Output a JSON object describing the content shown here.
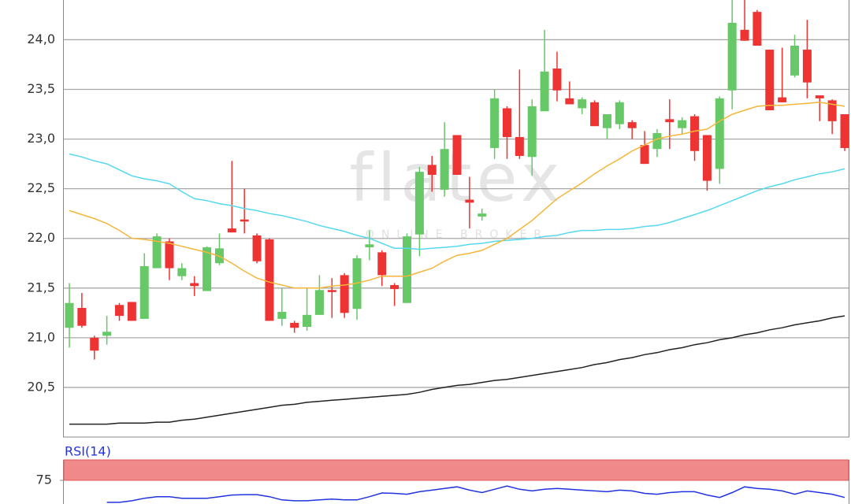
{
  "chart_data": [
    {
      "type": "candlestick",
      "watermark": "flatex",
      "watermark_sub": "ONLINE BROKER",
      "up_color": "#66c866",
      "down_color": "#ee3333",
      "ylim": [
        20.0,
        24.4
      ],
      "yticks": [
        {
          "value": 20.5,
          "label": "20,5"
        },
        {
          "value": 21.0,
          "label": "21,0"
        },
        {
          "value": 21.5,
          "label": "21,5"
        },
        {
          "value": 22.0,
          "label": "22,0"
        },
        {
          "value": 22.5,
          "label": "22,5"
        },
        {
          "value": 23.0,
          "label": "23,0"
        },
        {
          "value": 23.5,
          "label": "23,5"
        },
        {
          "value": 24.0,
          "label": "24,0"
        }
      ],
      "grid": true,
      "open": [
        21.1,
        21.3,
        21.0,
        21.02,
        21.33,
        21.36,
        21.19,
        21.7,
        21.97,
        21.62,
        21.55,
        21.47,
        21.75,
        22.1,
        22.19,
        22.03,
        21.99,
        21.19,
        21.15,
        21.11,
        21.23,
        21.48,
        21.63,
        21.29,
        21.91,
        21.86,
        21.53,
        21.35,
        22.04,
        22.74,
        22.49,
        23.04,
        22.39,
        22.22,
        22.91,
        23.31,
        23.02,
        22.82,
        23.28,
        23.71,
        23.41,
        23.31,
        23.37,
        23.11,
        23.15,
        23.17,
        22.94,
        22.9,
        23.2,
        23.11,
        23.23,
        23.04,
        22.7,
        23.49,
        24.1,
        24.28,
        23.9,
        23.42,
        23.64,
        23.9,
        23.44,
        23.39,
        23.25
      ],
      "high": [
        21.55,
        21.45,
        21.02,
        21.22,
        21.35,
        21.36,
        21.85,
        22.05,
        22.0,
        21.75,
        21.62,
        21.92,
        22.05,
        22.78,
        22.5,
        22.05,
        22.0,
        21.5,
        21.17,
        21.5,
        21.63,
        21.6,
        21.65,
        21.83,
        22.08,
        21.88,
        21.55,
        22.05,
        22.72,
        22.83,
        23.17,
        23.04,
        22.62,
        22.3,
        23.5,
        23.33,
        23.7,
        23.4,
        24.1,
        23.88,
        23.58,
        23.42,
        23.39,
        23.25,
        23.39,
        23.19,
        23.08,
        23.1,
        23.4,
        23.22,
        23.25,
        23.04,
        23.43,
        24.4,
        24.4,
        24.3,
        23.9,
        23.92,
        24.05,
        24.2,
        23.44,
        23.4,
        23.25
      ],
      "low": [
        20.9,
        21.1,
        20.78,
        20.93,
        21.17,
        21.17,
        21.19,
        21.7,
        21.58,
        21.58,
        21.42,
        21.47,
        21.73,
        22.06,
        22.05,
        21.75,
        21.17,
        21.12,
        21.05,
        21.07,
        21.23,
        21.2,
        21.2,
        21.18,
        21.78,
        21.52,
        21.32,
        21.35,
        21.82,
        22.47,
        22.42,
        22.64,
        22.1,
        22.18,
        22.8,
        22.8,
        22.8,
        22.63,
        23.28,
        23.38,
        23.35,
        23.25,
        23.13,
        23.0,
        23.1,
        23.0,
        22.75,
        22.82,
        22.9,
        23.05,
        22.78,
        22.48,
        22.55,
        23.3,
        23.99,
        23.94,
        23.29,
        23.37,
        23.62,
        23.41,
        23.18,
        23.05,
        22.88
      ],
      "close": [
        21.35,
        21.12,
        20.87,
        21.06,
        21.22,
        21.17,
        21.72,
        22.02,
        21.7,
        21.7,
        21.52,
        21.91,
        21.9,
        22.06,
        22.17,
        21.77,
        21.17,
        21.26,
        21.1,
        21.23,
        21.48,
        21.46,
        21.25,
        21.8,
        21.94,
        21.63,
        21.49,
        22.02,
        22.67,
        22.64,
        22.9,
        22.64,
        22.36,
        22.25,
        23.41,
        23.02,
        22.83,
        23.33,
        23.68,
        23.49,
        23.35,
        23.4,
        23.13,
        23.25,
        23.37,
        23.11,
        22.75,
        23.06,
        23.17,
        23.19,
        22.88,
        22.58,
        23.41,
        24.17,
        23.99,
        23.94,
        23.29,
        23.37,
        23.94,
        23.57,
        23.41,
        23.18,
        22.91
      ],
      "overlays": [
        {
          "color": "#222222",
          "values": [
            20.13,
            20.13,
            20.13,
            20.13,
            20.14,
            20.14,
            20.14,
            20.15,
            20.15,
            20.17,
            20.18,
            20.2,
            20.22,
            20.24,
            20.26,
            20.28,
            20.3,
            20.32,
            20.33,
            20.35,
            20.36,
            20.37,
            20.38,
            20.39,
            20.4,
            20.41,
            20.42,
            20.43,
            20.45,
            20.48,
            20.5,
            20.52,
            20.53,
            20.55,
            20.57,
            20.58,
            20.6,
            20.62,
            20.64,
            20.66,
            20.68,
            20.7,
            20.73,
            20.75,
            20.78,
            20.8,
            20.83,
            20.85,
            20.88,
            20.9,
            20.93,
            20.95,
            20.98,
            21.0,
            21.03,
            21.05,
            21.08,
            21.1,
            21.13,
            21.15,
            21.17,
            21.2,
            21.22
          ]
        },
        {
          "color": "#55d8f0",
          "values": [
            22.85,
            22.82,
            22.78,
            22.75,
            22.69,
            22.63,
            22.6,
            22.58,
            22.55,
            22.47,
            22.4,
            22.38,
            22.35,
            22.33,
            22.3,
            22.28,
            22.25,
            22.23,
            22.2,
            22.17,
            22.13,
            22.1,
            22.07,
            22.03,
            22.0,
            21.95,
            21.9,
            21.9,
            21.89,
            21.9,
            21.91,
            21.92,
            21.94,
            21.95,
            21.97,
            21.98,
            21.99,
            22.0,
            22.02,
            22.03,
            22.06,
            22.08,
            22.08,
            22.09,
            22.09,
            22.1,
            22.12,
            22.13,
            22.16,
            22.2,
            22.24,
            22.28,
            22.33,
            22.38,
            22.43,
            22.48,
            22.52,
            22.55,
            22.59,
            22.62,
            22.65,
            22.67,
            22.7
          ]
        },
        {
          "color": "#f5b63a",
          "values": [
            22.28,
            22.24,
            22.2,
            22.15,
            22.08,
            22.0,
            21.99,
            21.97,
            21.95,
            21.92,
            21.89,
            21.86,
            21.82,
            21.75,
            21.67,
            21.6,
            21.56,
            21.53,
            21.5,
            21.5,
            21.5,
            21.52,
            21.53,
            21.55,
            21.58,
            21.62,
            21.62,
            21.62,
            21.66,
            21.7,
            21.77,
            21.83,
            21.85,
            21.88,
            21.94,
            22.0,
            22.09,
            22.18,
            22.29,
            22.4,
            22.48,
            22.56,
            22.65,
            22.73,
            22.8,
            22.88,
            22.94,
            23.0,
            23.03,
            23.05,
            23.08,
            23.1,
            23.18,
            23.25,
            23.29,
            23.33,
            23.34,
            23.34,
            23.35,
            23.36,
            23.37,
            23.35,
            23.33
          ]
        }
      ]
    },
    {
      "type": "line",
      "title": "RSI(14)",
      "color": "#2233dd",
      "ylim": [
        46,
        100
      ],
      "yticks": [
        75
      ],
      "band": {
        "from": 75,
        "to": 100,
        "color": "#f08a8a"
      },
      "values": [
        null,
        null,
        null,
        48,
        48,
        50,
        53,
        55,
        55,
        53,
        53,
        53,
        55,
        57,
        57.5,
        57.5,
        55,
        51,
        50,
        50,
        51,
        52,
        51,
        51,
        55,
        59.5,
        59,
        58,
        61,
        63,
        65,
        67,
        63,
        60,
        64,
        68,
        64,
        62,
        64,
        65,
        64,
        63,
        62,
        61,
        63,
        62,
        59,
        58,
        60,
        61,
        61,
        57,
        54,
        60,
        67,
        65,
        64,
        62,
        58,
        62,
        60,
        58,
        54
      ]
    }
  ]
}
